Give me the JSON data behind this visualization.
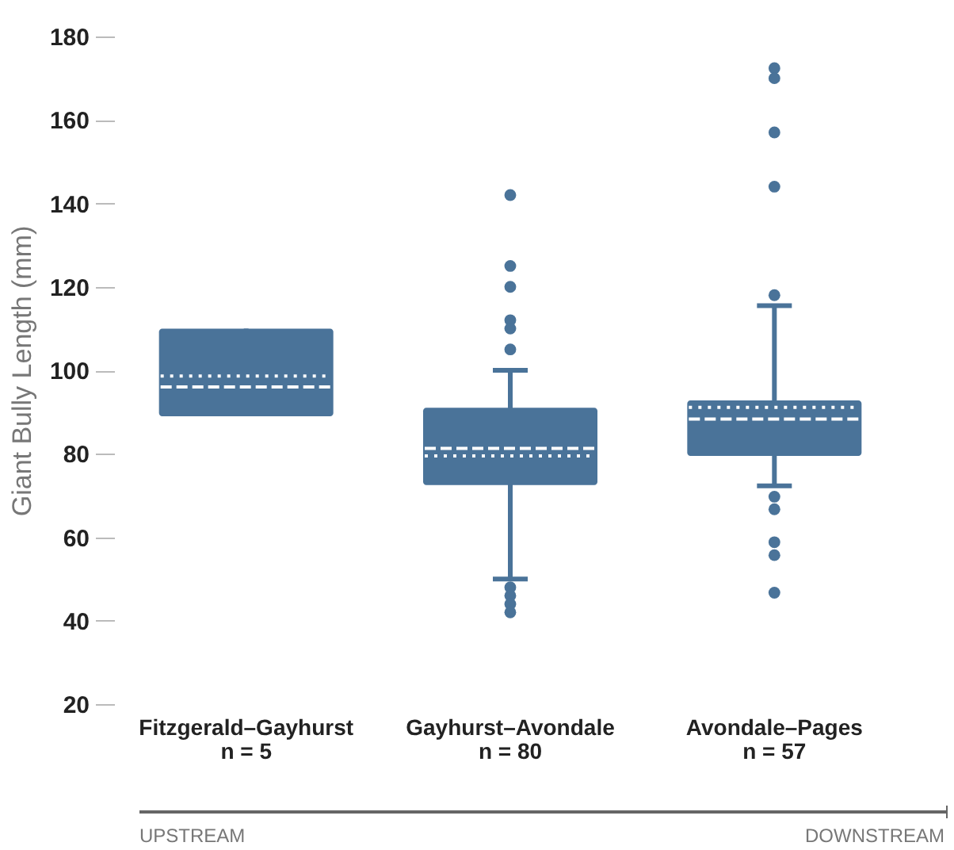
{
  "chart_data": {
    "type": "box",
    "ylabel": "Giant Bully Length (mm)",
    "categories": [
      "Fitzgerald–Gayhurst\nn = 5",
      "Gayhurst–Avondale\nn = 80",
      "Avondale–Pages\nn = 57"
    ],
    "ylim": [
      20,
      180
    ],
    "yticks": [
      20,
      40,
      60,
      80,
      100,
      120,
      140,
      160,
      180
    ],
    "grid": false,
    "series": [
      {
        "color": "#4a7399",
        "boxes": [
          {
            "low": 89,
            "q1": 89,
            "median": 96,
            "q3": 110,
            "high": 110,
            "mean": 98.6
          },
          {
            "low": 50,
            "q1": 72.5,
            "median": 81.3,
            "q3": 91,
            "high": 100,
            "mean": 79.5,
            "outliers": [
              142,
              125,
              120,
              112,
              110,
              105,
              48,
              46,
              44,
              42
            ]
          },
          {
            "low": 72.3,
            "q1": 79.5,
            "median": 88.3,
            "q3": 92.8,
            "high": 115.5,
            "mean": 91.1,
            "outliers": [
              172.4,
              170,
              157,
              144,
              118,
              69.7,
              66.7,
              58.8,
              55.7,
              46.7
            ]
          }
        ]
      }
    ],
    "annotations": [
      "UPSTREAM",
      "DOWNSTREAM"
    ]
  }
}
